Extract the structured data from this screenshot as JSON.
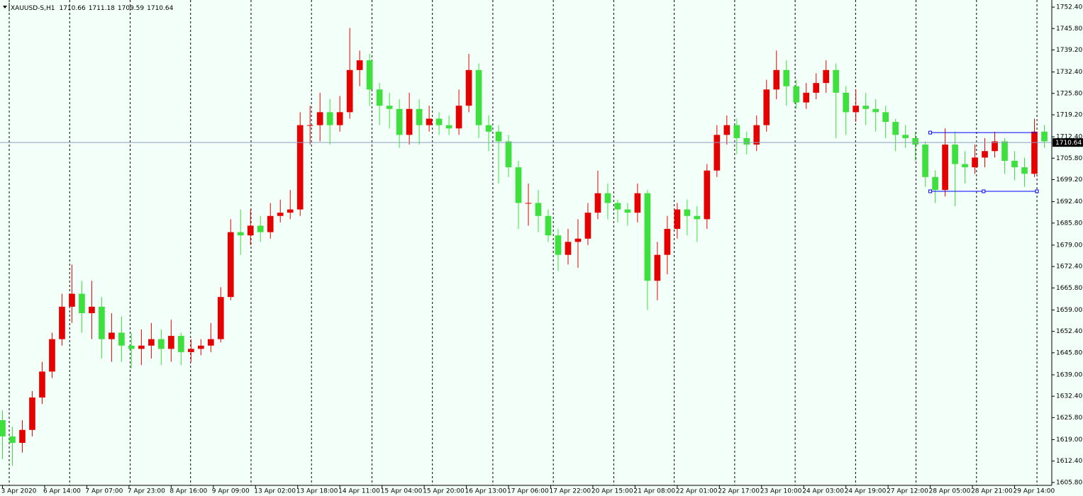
{
  "chart_data": {
    "type": "candlestick",
    "title": "XAUUSD-S,H1",
    "header_values": [
      1710.66,
      1711.18,
      1709.59,
      1710.64
    ],
    "up_color": "#e60000",
    "down_color": "#3ee03e",
    "price_line_color": "#8d9bc0",
    "ylim": [
      1604.9,
      1754.6
    ],
    "xlim": [
      -1,
      423
    ],
    "yticks": [
      {
        "value": 1752.4,
        "label": "1752.40"
      },
      {
        "value": 1745.8,
        "label": "1745.80"
      },
      {
        "value": 1739.2,
        "label": "1739.20"
      },
      {
        "value": 1732.4,
        "label": "1732.40"
      },
      {
        "value": 1725.8,
        "label": "1725.80"
      },
      {
        "value": 1719.2,
        "label": "1719.20"
      },
      {
        "value": 1712.4,
        "label": "1712.40"
      },
      {
        "value": 1705.8,
        "label": "1705.80"
      },
      {
        "value": 1699.2,
        "label": "1699.20"
      },
      {
        "value": 1692.4,
        "label": "1692.40"
      },
      {
        "value": 1685.8,
        "label": "1685.80"
      },
      {
        "value": 1679,
        "label": "1679.00"
      },
      {
        "value": 1672.4,
        "label": "1672.40"
      },
      {
        "value": 1665.8,
        "label": "1665.80"
      },
      {
        "value": 1659,
        "label": "1659.00"
      },
      {
        "value": 1652.4,
        "label": "1652.40"
      },
      {
        "value": 1645.8,
        "label": "1645.80"
      },
      {
        "value": 1639,
        "label": "1639.00"
      },
      {
        "value": 1632.4,
        "label": "1632.40"
      },
      {
        "value": 1625.8,
        "label": "1625.80"
      },
      {
        "value": 1619,
        "label": "1619.00"
      },
      {
        "value": 1612.4,
        "label": "1612.40"
      },
      {
        "value": 1605.8,
        "label": "1605.80"
      }
    ],
    "xticks": [
      {
        "value": 0,
        "label": "3 Apr 2020"
      },
      {
        "value": 17,
        "label": "6 Apr 14:00"
      },
      {
        "value": 34,
        "label": "7 Apr 07:00"
      },
      {
        "value": 51,
        "label": "7 Apr 23:00"
      },
      {
        "value": 68,
        "label": "8 Apr 16:00"
      },
      {
        "value": 85,
        "label": "9 Apr 09:00"
      },
      {
        "value": 102,
        "label": "13 Apr 02:00"
      },
      {
        "value": 119,
        "label": "13 Apr 18:00"
      },
      {
        "value": 136,
        "label": "14 Apr 11:00"
      },
      {
        "value": 153,
        "label": "15 Apr 04:00"
      },
      {
        "value": 170,
        "label": "15 Apr 20:00"
      },
      {
        "value": 187,
        "label": "16 Apr 13:00"
      },
      {
        "value": 204,
        "label": "17 Apr 06:00"
      },
      {
        "value": 221,
        "label": "17 Apr 22:00"
      },
      {
        "value": 238,
        "label": "20 Apr 15:00"
      },
      {
        "value": 255,
        "label": "21 Apr 08:00"
      },
      {
        "value": 272,
        "label": "22 Apr 01:00"
      },
      {
        "value": 289,
        "label": "22 Apr 17:00"
      },
      {
        "value": 306,
        "label": "23 Apr 10:00"
      },
      {
        "value": 323,
        "label": "24 Apr 03:00"
      },
      {
        "value": 340,
        "label": "24 Apr 19:00"
      },
      {
        "value": 357,
        "label": "27 Apr 12:00"
      },
      {
        "value": 374,
        "label": "28 Apr 05:00"
      },
      {
        "value": 391,
        "label": "28 Apr 21:00"
      },
      {
        "value": 408,
        "label": "29 Apr 14:00"
      }
    ],
    "rectangle": {
      "x": [
        374,
        417
      ],
      "y": [
        1713.7,
        1695.6
      ],
      "color": "#0000ff"
    },
    "x": [
      0,
      4,
      8,
      12,
      16,
      20,
      24,
      28,
      32,
      36,
      40,
      44,
      48,
      52,
      56,
      60,
      64,
      68,
      72,
      76,
      80,
      84,
      88,
      92,
      96,
      100,
      104,
      108,
      112,
      116,
      120,
      124,
      128,
      132,
      136,
      140,
      144,
      148,
      152,
      156,
      160,
      164,
      168,
      172,
      176,
      180,
      184,
      188,
      192,
      196,
      200,
      204,
      208,
      212,
      216,
      220,
      224,
      228,
      232,
      236,
      240,
      244,
      248,
      252,
      256,
      260,
      264,
      268,
      272,
      276,
      280,
      284,
      288,
      292,
      296,
      300,
      304,
      308,
      312,
      316,
      320,
      324,
      328,
      332,
      336,
      340,
      344,
      348,
      352,
      356,
      360,
      364,
      368,
      372,
      376,
      380,
      384,
      388,
      392,
      396,
      400,
      404,
      408,
      412,
      416,
      420
    ],
    "open": [
      1625,
      1620,
      1618,
      1622,
      1632,
      1640,
      1650,
      1660,
      1664,
      1658,
      1660,
      1650,
      1652,
      1648,
      1647,
      1648,
      1650,
      1647,
      1651,
      1646,
      1647,
      1648,
      1650,
      1663,
      1683,
      1682,
      1685,
      1683,
      1688,
      1689,
      1690,
      1716,
      1716,
      1720,
      1716,
      1720,
      1733,
      1736,
      1727,
      1722,
      1721,
      1713,
      1721,
      1716,
      1718,
      1716,
      1715,
      1722,
      1733,
      1716,
      1714,
      1711,
      1703,
      1692,
      1692,
      1688,
      1682,
      1676,
      1680,
      1681,
      1689,
      1695,
      1692,
      1690,
      1689,
      1695,
      1668,
      1676,
      1684,
      1690,
      1688,
      1687,
      1702,
      1713,
      1716,
      1712,
      1710,
      1716,
      1727,
      1733,
      1728,
      1723,
      1726,
      1729,
      1733,
      1726,
      1720,
      1722,
      1721,
      1720,
      1717,
      1713,
      1712,
      1710,
      1700,
      1696,
      1710,
      1704,
      1703,
      1706,
      1708,
      1711,
      1705,
      1703,
      1701,
      1714
    ],
    "high": [
      1628,
      1623,
      1625,
      1634,
      1643,
      1652,
      1664,
      1673,
      1668,
      1668,
      1663,
      1658,
      1657,
      1652,
      1653,
      1655,
      1653,
      1656,
      1652,
      1650,
      1650,
      1655,
      1666,
      1687,
      1690,
      1690,
      1688,
      1692,
      1693,
      1696,
      1720,
      1722,
      1726,
      1724,
      1725,
      1746,
      1739,
      1738,
      1729,
      1726,
      1724,
      1726,
      1724,
      1722,
      1720,
      1719,
      1727,
      1738,
      1735,
      1719,
      1716,
      1713,
      1705,
      1698,
      1696,
      1690,
      1684,
      1684,
      1687,
      1692,
      1702,
      1698,
      1693,
      1692,
      1698,
      1696,
      1680,
      1688,
      1692,
      1693,
      1691,
      1704,
      1716,
      1719,
      1718,
      1714,
      1719,
      1730,
      1739,
      1736,
      1730,
      1729,
      1732,
      1736,
      1735,
      1728,
      1727,
      1726,
      1724,
      1722,
      1718,
      1716,
      1714,
      1711,
      1702,
      1715,
      1714,
      1708,
      1710,
      1712,
      1714,
      1712,
      1708,
      1706,
      1718,
      1716
    ],
    "low": [
      1613,
      1611,
      1615,
      1620,
      1630,
      1638,
      1648,
      1655,
      1652,
      1650,
      1644,
      1643,
      1643,
      1641,
      1642,
      1644,
      1642,
      1643,
      1642,
      1643,
      1645,
      1646,
      1649,
      1662,
      1676,
      1679,
      1680,
      1681,
      1686,
      1687,
      1688,
      1710,
      1711,
      1710,
      1714,
      1718,
      1728,
      1722,
      1716,
      1715,
      1709,
      1710,
      1710,
      1714,
      1713,
      1713,
      1713,
      1720,
      1712,
      1708,
      1698,
      1700,
      1684,
      1685,
      1683,
      1680,
      1671,
      1673,
      1672,
      1679,
      1687,
      1687,
      1686,
      1685,
      1686,
      1659,
      1662,
      1670,
      1681,
      1682,
      1680,
      1684,
      1700,
      1710,
      1707,
      1707,
      1708,
      1714,
      1724,
      1722,
      1721,
      1721,
      1724,
      1726,
      1712,
      1713,
      1717,
      1716,
      1714,
      1712,
      1708,
      1709,
      1705,
      1697,
      1692,
      1694,
      1691,
      1698,
      1701,
      1703,
      1706,
      1701,
      1699,
      1697,
      1700,
      1709
    ],
    "close": [
      1620,
      1618,
      1622,
      1632,
      1640,
      1650,
      1660,
      1664,
      1658,
      1660,
      1650,
      1652,
      1648,
      1647,
      1648,
      1650,
      1647,
      1651,
      1646,
      1647,
      1648,
      1650,
      1663,
      1683,
      1682,
      1685,
      1683,
      1688,
      1689,
      1690,
      1716,
      1716,
      1720,
      1716,
      1720,
      1733,
      1736,
      1727,
      1722,
      1721,
      1713,
      1721,
      1716,
      1718,
      1716,
      1715,
      1722,
      1733,
      1716,
      1714,
      1711,
      1703,
      1692,
      1692,
      1688,
      1682,
      1676,
      1680,
      1681,
      1689,
      1695,
      1692,
      1690,
      1689,
      1695,
      1668,
      1676,
      1684,
      1690,
      1688,
      1687,
      1702,
      1713,
      1716,
      1712,
      1710,
      1716,
      1727,
      1733,
      1728,
      1723,
      1726,
      1729,
      1733,
      1726,
      1720,
      1722,
      1721,
      1720,
      1717,
      1713,
      1712,
      1710,
      1700,
      1696,
      1710,
      1704,
      1703,
      1706,
      1708,
      1711,
      1705,
      1703,
      1701,
      1714,
      1711
    ]
  }
}
